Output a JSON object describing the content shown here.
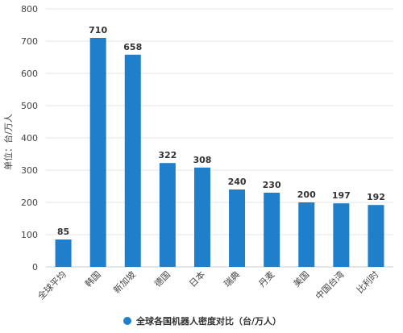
{
  "chart_data": {
    "type": "bar",
    "categories": [
      "全球平均",
      "韩国",
      "新加坡",
      "德国",
      "日本",
      "瑞典",
      "丹麦",
      "美国",
      "中国台湾",
      "比利时"
    ],
    "series": [
      {
        "name": "全球各国机器人密度对比（台/万人）",
        "values": [
          85,
          710,
          658,
          322,
          308,
          240,
          230,
          200,
          197,
          192
        ]
      }
    ],
    "ylabel": "单位：台/万人",
    "xlabel": "",
    "ylim": [
      0,
      800
    ],
    "yticks": [
      0,
      100,
      200,
      300,
      400,
      500,
      600,
      700,
      800
    ],
    "grid": true,
    "legend": "bottom-center",
    "bar_color": "#1F7FCB",
    "grid_color": "#E4E4E4"
  }
}
